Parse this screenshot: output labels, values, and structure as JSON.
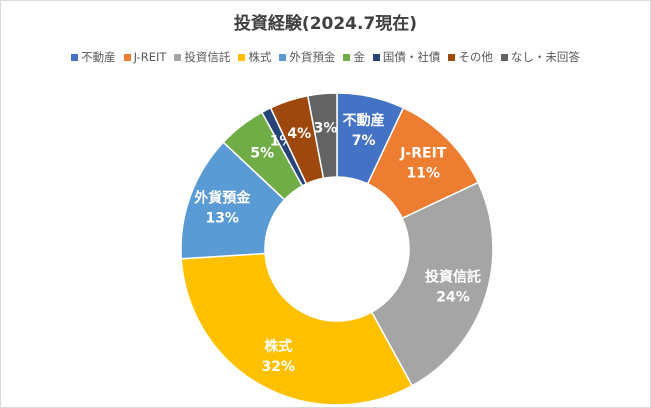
{
  "chart_data": {
    "type": "pie",
    "title": "投資経験(2024.7現在)",
    "legend_position": "top",
    "hole": true,
    "series": [
      {
        "name": "不動産",
        "value": 7,
        "color": "#4472C4",
        "show_label": true,
        "show_name": true,
        "label_color": "#ffffff"
      },
      {
        "name": "J-REIT",
        "value": 11,
        "color": "#ED7D31",
        "show_label": true,
        "show_name": true,
        "label_color": "#ffffff"
      },
      {
        "name": "投資信託",
        "value": 24,
        "color": "#A5A5A5",
        "show_label": true,
        "show_name": true,
        "label_color": "#ffffff"
      },
      {
        "name": "株式",
        "value": 32,
        "color": "#FFC000",
        "show_label": true,
        "show_name": true,
        "label_color": "#ffffff"
      },
      {
        "name": "外貨預金",
        "value": 13,
        "color": "#5B9BD5",
        "show_label": true,
        "show_name": true,
        "label_color": "#ffffff"
      },
      {
        "name": "金",
        "value": 5,
        "color": "#70AD47",
        "show_label": true,
        "show_name": false,
        "label_color": "#ffffff"
      },
      {
        "name": "国債・社債",
        "value": 1,
        "color": "#264478",
        "show_label": true,
        "show_name": false,
        "label_color": "#ffffff"
      },
      {
        "name": "その他",
        "value": 4,
        "color": "#9E480E",
        "show_label": true,
        "show_name": false,
        "label_color": "#ffffff"
      },
      {
        "name": "なし・未回答",
        "value": 3,
        "color": "#636363",
        "show_label": true,
        "show_name": false,
        "label_color": "#ffffff"
      }
    ]
  }
}
